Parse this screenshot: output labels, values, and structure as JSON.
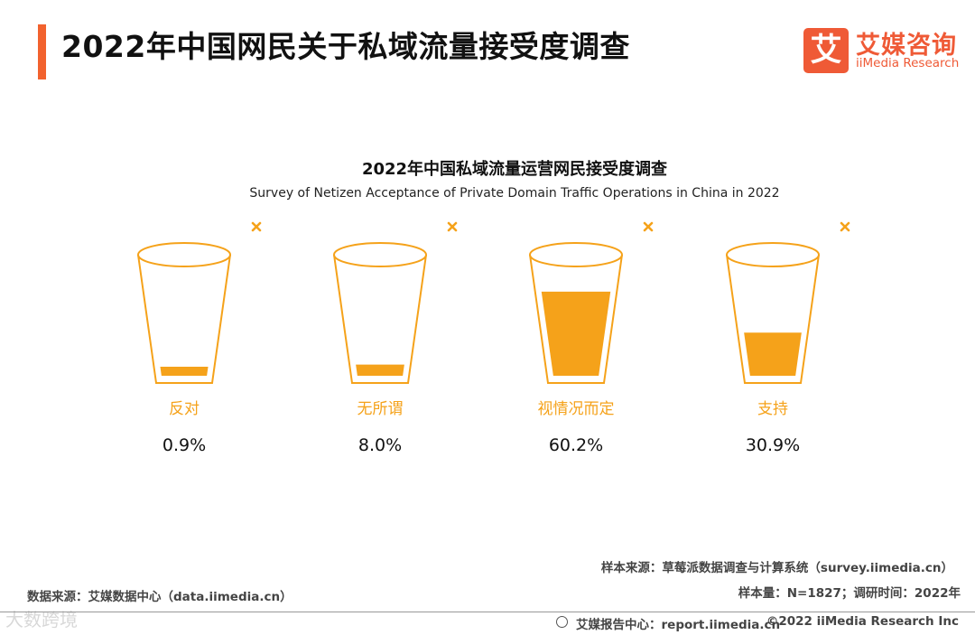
{
  "header": {
    "title": "2022年中国网民关于私域流量接受度调查",
    "logo_mark": "艾",
    "logo_cn": "艾媒咨询",
    "logo_en": "iiMedia Research"
  },
  "chart_data": {
    "type": "pictogram",
    "title": "2022年中国私域流量运营网民接受度调查",
    "subtitle": "Survey of Netizen Acceptance of Private Domain Traffic Operations in China in 2022",
    "categories": [
      "反对",
      "无所谓",
      "视情况而定",
      "支持"
    ],
    "values": [
      0.9,
      8.0,
      60.2,
      30.9
    ],
    "value_labels": [
      "0.9%",
      "8.0%",
      "60.2%",
      "30.9%"
    ],
    "unit": "%",
    "ylim": [
      0,
      100
    ]
  },
  "footer": {
    "sample_source": "样本来源：草莓派数据调查与计算系统（survey.iimedia.cn）",
    "sample_size": "样本量：N=1827；调研时间：2022年",
    "data_source": "数据来源：艾媒数据中心（data.iimedia.cn）",
    "report_center": "艾媒报告中心：report.iimedia.cn",
    "copyright": "©2022  iiMedia Research  Inc",
    "watermark": "大数跨境"
  },
  "colors": {
    "accent": "#f2622e",
    "glass": "#f5a21a",
    "category_label": "#f5a21a",
    "logo": "#ef5a36"
  }
}
